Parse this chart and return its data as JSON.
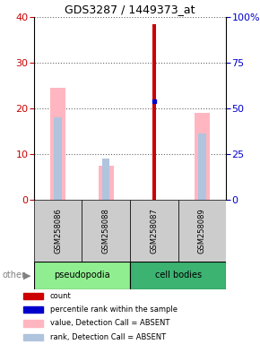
{
  "title": "GDS3287 / 1449373_at",
  "samples": [
    "GSM258086",
    "GSM258088",
    "GSM258087",
    "GSM258089"
  ],
  "groups": [
    "pseudopodia",
    "pseudopodia",
    "cell bodies",
    "cell bodies"
  ],
  "group_colors": [
    "#90EE90",
    "#90EE90",
    "#00CC00",
    "#00CC00"
  ],
  "bar_positions": [
    0,
    1,
    2,
    3
  ],
  "count_values": [
    0,
    0,
    38.5,
    0
  ],
  "count_color": "#CC0000",
  "rank_values": [
    0,
    0,
    21.5,
    0
  ],
  "rank_color": "#0000CC",
  "absent_value_bars": [
    24.5,
    7.5,
    0,
    19.0
  ],
  "absent_value_color": "#FFB6C1",
  "absent_rank_bars": [
    18.0,
    9.0,
    0,
    14.5
  ],
  "absent_rank_color": "#B0C4DE",
  "ylim_left": [
    0,
    40
  ],
  "ylim_right": [
    0,
    100
  ],
  "yticks_left": [
    0,
    10,
    20,
    30,
    40
  ],
  "yticks_right": [
    0,
    25,
    50,
    75,
    100
  ],
  "ylabel_left_color": "#CC0000",
  "ylabel_right_color": "#0000CC",
  "group_label_colors": [
    "#90EE90",
    "#00CC00"
  ],
  "group_names": [
    "pseudopodia",
    "cell bodies"
  ],
  "group_bg_colors": [
    "#90EE90",
    "#00CC00"
  ],
  "other_label": "other",
  "legend_items": [
    {
      "label": "count",
      "color": "#CC0000",
      "marker": "s"
    },
    {
      "label": "percentile rank within the sample",
      "color": "#0000CC",
      "marker": "s"
    },
    {
      "label": "value, Detection Call = ABSENT",
      "color": "#FFB6C1",
      "marker": "s"
    },
    {
      "label": "rank, Detection Call = ABSENT",
      "color": "#B0C4DE",
      "marker": "s"
    }
  ]
}
